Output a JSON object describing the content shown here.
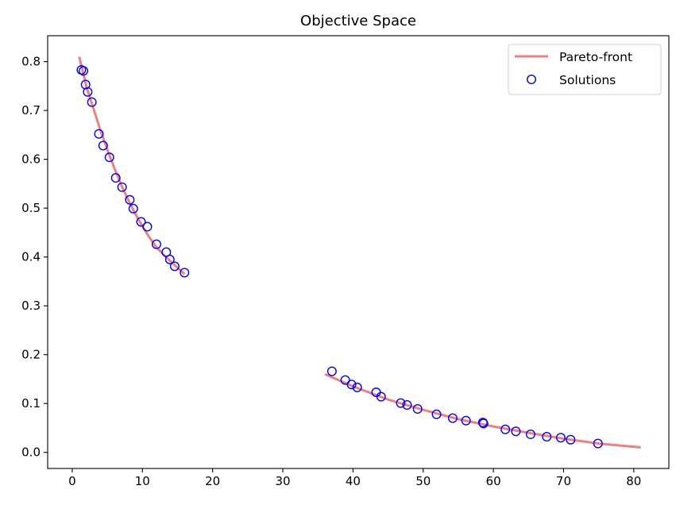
{
  "chart_data": {
    "type": "scatter",
    "title": "Objective Space",
    "xlabel": "",
    "ylabel": "",
    "xlim": [
      -3.5,
      85.0
    ],
    "ylim": [
      -0.033,
      0.853
    ],
    "xticks": [
      0,
      10,
      20,
      30,
      40,
      50,
      60,
      70,
      80
    ],
    "yticks": [
      0.0,
      0.1,
      0.2,
      0.3,
      0.4,
      0.5,
      0.6,
      0.7,
      0.8
    ],
    "xtick_labels": [
      "0",
      "10",
      "20",
      "30",
      "40",
      "50",
      "60",
      "70",
      "80"
    ],
    "ytick_labels": [
      "0.0",
      "0.1",
      "0.2",
      "0.3",
      "0.4",
      "0.5",
      "0.6",
      "0.7",
      "0.8"
    ],
    "grid": false,
    "legend_position": "top-right",
    "colors": {
      "front": "#f08080",
      "solutions": "#0000ff"
    },
    "series": [
      {
        "name": "Pareto-front",
        "kind": "line",
        "segments": [
          [
            [
              1.0,
              0.81
            ],
            [
              2.0,
              0.75
            ],
            [
              3.0,
              0.705
            ],
            [
              4.0,
              0.66
            ],
            [
              5.0,
              0.62
            ],
            [
              6.0,
              0.582
            ],
            [
              7.0,
              0.547
            ],
            [
              8.0,
              0.516
            ],
            [
              9.0,
              0.488
            ],
            [
              10.0,
              0.463
            ],
            [
              11.0,
              0.44
            ],
            [
              12.0,
              0.42
            ],
            [
              13.0,
              0.405
            ],
            [
              14.0,
              0.391
            ],
            [
              15.0,
              0.378
            ],
            [
              16.0,
              0.365
            ]
          ],
          [
            [
              36.0,
              0.16
            ],
            [
              40.0,
              0.135
            ],
            [
              45.0,
              0.108
            ],
            [
              50.0,
              0.087
            ],
            [
              55.0,
              0.068
            ],
            [
              60.0,
              0.053
            ],
            [
              65.0,
              0.04
            ],
            [
              70.0,
              0.028
            ],
            [
              75.0,
              0.018
            ],
            [
              81.0,
              0.01
            ]
          ]
        ]
      },
      {
        "name": "Solutions",
        "kind": "scatter",
        "points": [
          [
            1.3,
            0.783
          ],
          [
            1.6,
            0.781
          ],
          [
            1.9,
            0.753
          ],
          [
            2.2,
            0.738
          ],
          [
            2.8,
            0.717
          ],
          [
            3.8,
            0.652
          ],
          [
            4.4,
            0.628
          ],
          [
            5.3,
            0.604
          ],
          [
            6.2,
            0.562
          ],
          [
            7.1,
            0.543
          ],
          [
            8.2,
            0.517
          ],
          [
            8.7,
            0.499
          ],
          [
            9.8,
            0.472
          ],
          [
            10.7,
            0.462
          ],
          [
            12.0,
            0.426
          ],
          [
            13.4,
            0.41
          ],
          [
            13.9,
            0.395
          ],
          [
            14.6,
            0.381
          ],
          [
            16.0,
            0.368
          ],
          [
            37.0,
            0.166
          ],
          [
            38.9,
            0.148
          ],
          [
            39.8,
            0.139
          ],
          [
            40.6,
            0.133
          ],
          [
            43.3,
            0.123
          ],
          [
            44.0,
            0.114
          ],
          [
            46.8,
            0.101
          ],
          [
            47.7,
            0.097
          ],
          [
            49.2,
            0.089
          ],
          [
            51.9,
            0.078
          ],
          [
            54.2,
            0.07
          ],
          [
            56.1,
            0.065
          ],
          [
            58.5,
            0.061
          ],
          [
            58.6,
            0.059
          ],
          [
            61.7,
            0.047
          ],
          [
            63.2,
            0.043
          ],
          [
            65.3,
            0.037
          ],
          [
            67.6,
            0.032
          ],
          [
            69.6,
            0.03
          ],
          [
            71.0,
            0.026
          ],
          [
            74.9,
            0.018
          ]
        ]
      }
    ]
  }
}
